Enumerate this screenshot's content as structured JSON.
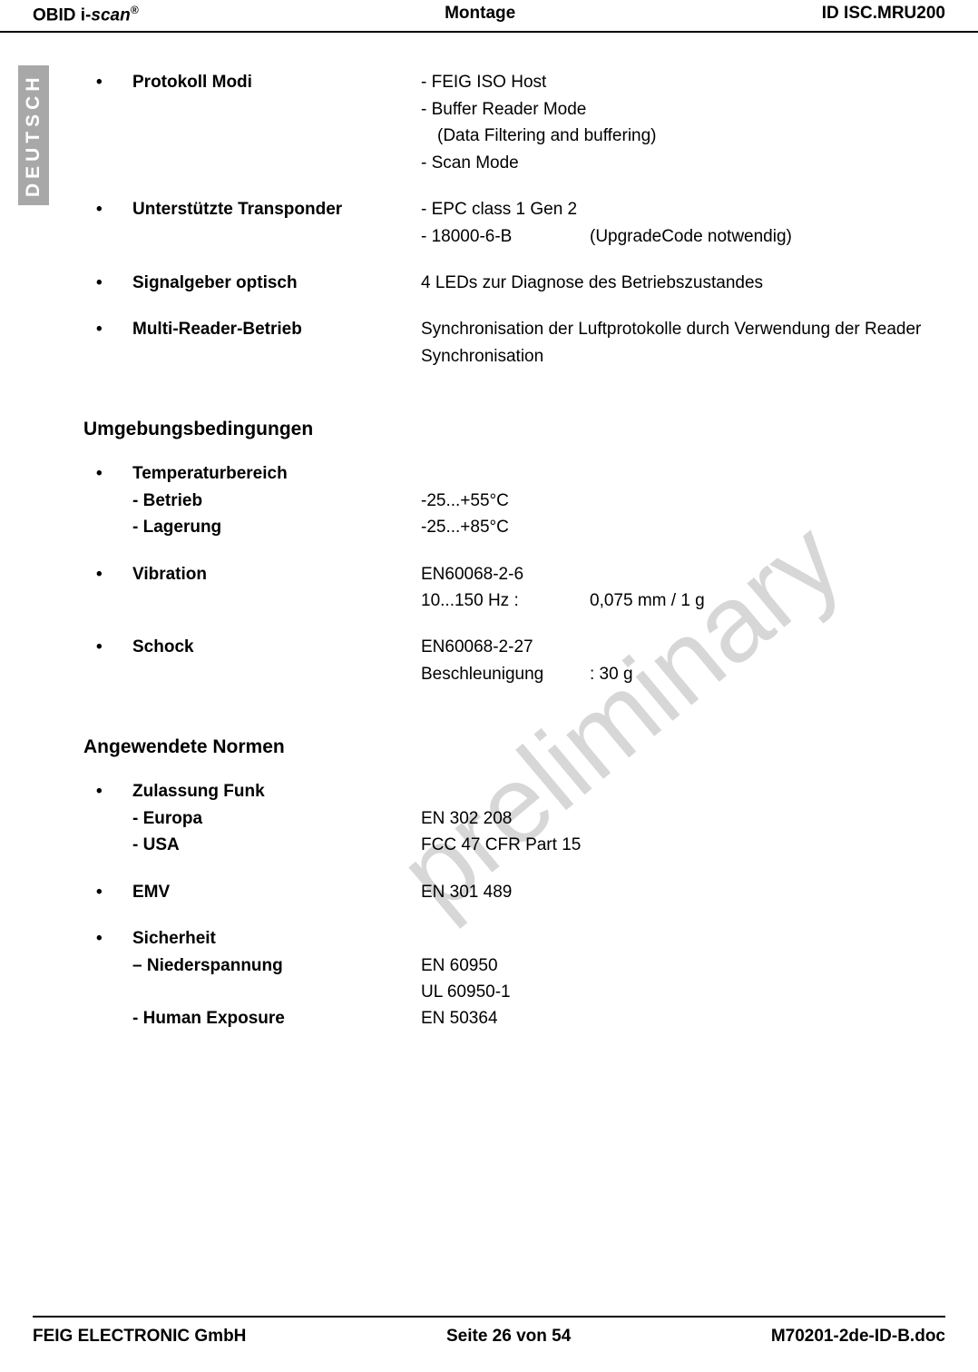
{
  "header": {
    "product_prefix": "OBID i-",
    "product_scan": "scan",
    "reg": "®",
    "center": "Montage",
    "right": "ID ISC.MRU200"
  },
  "side_tab": "DEUTSCH",
  "watermark": "preliminary",
  "specs1": [
    {
      "label": "Protokoll Modi",
      "lines": [
        "- FEIG ISO Host",
        "- Buffer Reader Mode"
      ],
      "indented": "(Data Filtering and buffering)",
      "after": [
        "- Scan Mode"
      ]
    },
    {
      "label": "Unterstützte Transponder",
      "rows": [
        {
          "left": "- EPC class 1 Gen 2",
          "right": ""
        },
        {
          "left": "- 18000-6-B",
          "right": "(UpgradeCode notwendig)"
        }
      ]
    },
    {
      "label": "Signalgeber optisch",
      "value": "4 LEDs zur Diagnose des Betriebszustandes"
    },
    {
      "label": "Multi-Reader-Betrieb",
      "value": "Synchronisation der Luftprotokolle durch Verwendung der Reader Synchronisation"
    }
  ],
  "section2_title": "Umgebungsbedingungen",
  "specs2": [
    {
      "label": "Temperaturbereich",
      "subs": [
        {
          "sublabel": "- Betrieb",
          "value": "-25...+55°C"
        },
        {
          "sublabel": "- Lagerung",
          "value": "-25...+85°C"
        }
      ]
    },
    {
      "label": "Vibration",
      "lines": [
        "EN60068-2-6"
      ],
      "rows": [
        {
          "left": "10...150 Hz :",
          "right": "0,075 mm / 1 g"
        }
      ]
    },
    {
      "label": "Schock",
      "lines": [
        "EN60068-2-27"
      ],
      "rows": [
        {
          "left": "Beschleunigung",
          "right": ": 30 g"
        }
      ]
    }
  ],
  "section3_title": "Angewendete Normen",
  "specs3": [
    {
      "label": "Zulassung Funk",
      "subs": [
        {
          "sublabel": "- Europa",
          "value": "EN 302 208"
        },
        {
          "sublabel": "- USA",
          "value": "FCC  47 CFR Part 15"
        }
      ]
    },
    {
      "label": "EMV",
      "value": "EN 301 489"
    },
    {
      "label": "Sicherheit",
      "subs": [
        {
          "sublabel": "– Niederspannung",
          "value": "EN 60950"
        },
        {
          "sublabel": "",
          "value": "UL 60950-1"
        },
        {
          "sublabel": "- Human Exposure",
          "value": "EN 50364"
        }
      ]
    }
  ],
  "footer": {
    "left": "FEIG ELECTRONIC GmbH",
    "center": "Seite 26 von 54",
    "right": "M70201-2de-ID-B.doc"
  }
}
